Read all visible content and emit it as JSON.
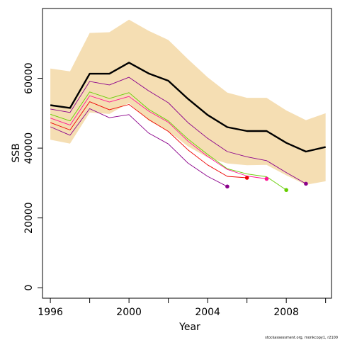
{
  "chart_data": {
    "type": "line",
    "xlabel": "Year",
    "ylabel": "SSB",
    "xlim": [
      1995.6,
      2010.3
    ],
    "ylim": [
      -3000,
      80000
    ],
    "x_ticks": [
      1996,
      1998,
      2000,
      2002,
      2004,
      2006,
      2008,
      2010
    ],
    "x_tick_labels": [
      "1996",
      "2000",
      "2004",
      "2008"
    ],
    "y_ticks": [
      0,
      20000,
      40000,
      60000
    ],
    "y_tick_labels": [
      "0",
      "20000",
      "40000",
      "60000"
    ],
    "credit": "stockassessment.org, monkcopy1, r2100",
    "band": {
      "color": "#F5DEB3",
      "x": [
        1996,
        1997,
        1998,
        1999,
        2000,
        2001,
        2002,
        2003,
        2004,
        2005,
        2006,
        2007,
        2008,
        2009,
        2010
      ],
      "upper": [
        62800,
        62000,
        73000,
        73200,
        76800,
        73600,
        71000,
        65500,
        60300,
        55900,
        54400,
        54400,
        50800,
        48000,
        50000
      ],
      "lower": [
        42400,
        41300,
        50200,
        49800,
        52900,
        47900,
        44900,
        40500,
        37300,
        35600,
        35100,
        35200,
        32200,
        29500,
        30500
      ]
    },
    "series": [
      {
        "color": "#000000",
        "width": 2.4,
        "x": [
          1996,
          1997,
          1998,
          1999,
          2000,
          2001,
          2002,
          2003,
          2004,
          2005,
          2006,
          2007,
          2008,
          2009,
          2010
        ],
        "values": [
          52300,
          51500,
          61300,
          61300,
          64500,
          61400,
          59300,
          54100,
          49500,
          46000,
          44900,
          44900,
          41500,
          39000,
          40300
        ],
        "end_marker": false
      },
      {
        "color": "#8B008B",
        "width": 0.9,
        "x": [
          1996,
          1997,
          1998,
          1999,
          2000,
          2001,
          2002,
          2003,
          2004,
          2005,
          2006,
          2007,
          2008,
          2009
        ],
        "values": [
          51200,
          50200,
          59100,
          58100,
          60300,
          56400,
          53000,
          47300,
          42800,
          39000,
          37500,
          36400,
          33000,
          29800
        ],
        "end_marker": true
      },
      {
        "color": "#66CD00",
        "width": 0.9,
        "x": [
          1996,
          1997,
          1998,
          1999,
          2000,
          2001,
          2002,
          2003,
          2004,
          2005,
          2006,
          2007,
          2008
        ],
        "values": [
          49700,
          47800,
          56100,
          54200,
          55900,
          51100,
          47800,
          42600,
          38200,
          34100,
          32600,
          31800,
          28000
        ],
        "end_marker": true
      },
      {
        "color": "#FF1493",
        "width": 0.9,
        "x": [
          1996,
          1997,
          1998,
          1999,
          2000,
          2001,
          2002,
          2003,
          2004,
          2005,
          2006,
          2007
        ],
        "values": [
          48600,
          46600,
          55000,
          53200,
          54800,
          50600,
          47400,
          42000,
          37600,
          33900,
          32000,
          31200
        ],
        "end_marker": true
      },
      {
        "color": "#EE0000",
        "width": 0.9,
        "x": [
          1996,
          1997,
          1998,
          1999,
          2000,
          2001,
          2002,
          2003,
          2004,
          2005,
          2006
        ],
        "values": [
          47300,
          45200,
          53300,
          51000,
          52500,
          48200,
          44800,
          39500,
          35200,
          31900,
          31500
        ],
        "end_marker": true
      },
      {
        "color": "#8B008B",
        "width": 0.9,
        "x": [
          1996,
          1997,
          1998,
          1999,
          2000,
          2001,
          2002,
          2003,
          2004,
          2005
        ],
        "values": [
          46100,
          43700,
          51300,
          48700,
          49600,
          44300,
          41200,
          35700,
          31900,
          29000
        ],
        "end_marker": true
      }
    ]
  }
}
